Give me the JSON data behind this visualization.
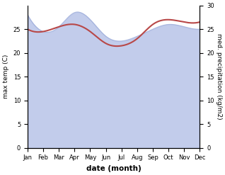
{
  "months": [
    "Jan",
    "Feb",
    "Mar",
    "Apr",
    "May",
    "Jun",
    "Jul",
    "Aug",
    "Sep",
    "Oct",
    "Nov",
    "Dec"
  ],
  "max_temp": [
    25.0,
    24.5,
    25.5,
    26.0,
    24.5,
    22.0,
    21.5,
    23.0,
    26.0,
    27.0,
    26.5,
    26.5
  ],
  "med_precip": [
    28.0,
    24.5,
    25.5,
    28.5,
    27.0,
    23.5,
    22.5,
    23.5,
    25.0,
    26.0,
    25.5,
    25.0
  ],
  "temp_color": "#b84848",
  "precip_fill_color": "#b8c4e8",
  "precip_line_color": "#9aaad8",
  "ylim_left": [
    0,
    30
  ],
  "ylim_right": [
    0,
    30
  ],
  "yticks_left": [
    0,
    5,
    10,
    15,
    20,
    25
  ],
  "yticks_right": [
    0,
    5,
    10,
    15,
    20,
    25,
    30
  ],
  "ylabel_left": "max temp (C)",
  "ylabel_right": "med. precipitation (kg/m2)",
  "xlabel": "date (month)",
  "background_color": "#ffffff"
}
